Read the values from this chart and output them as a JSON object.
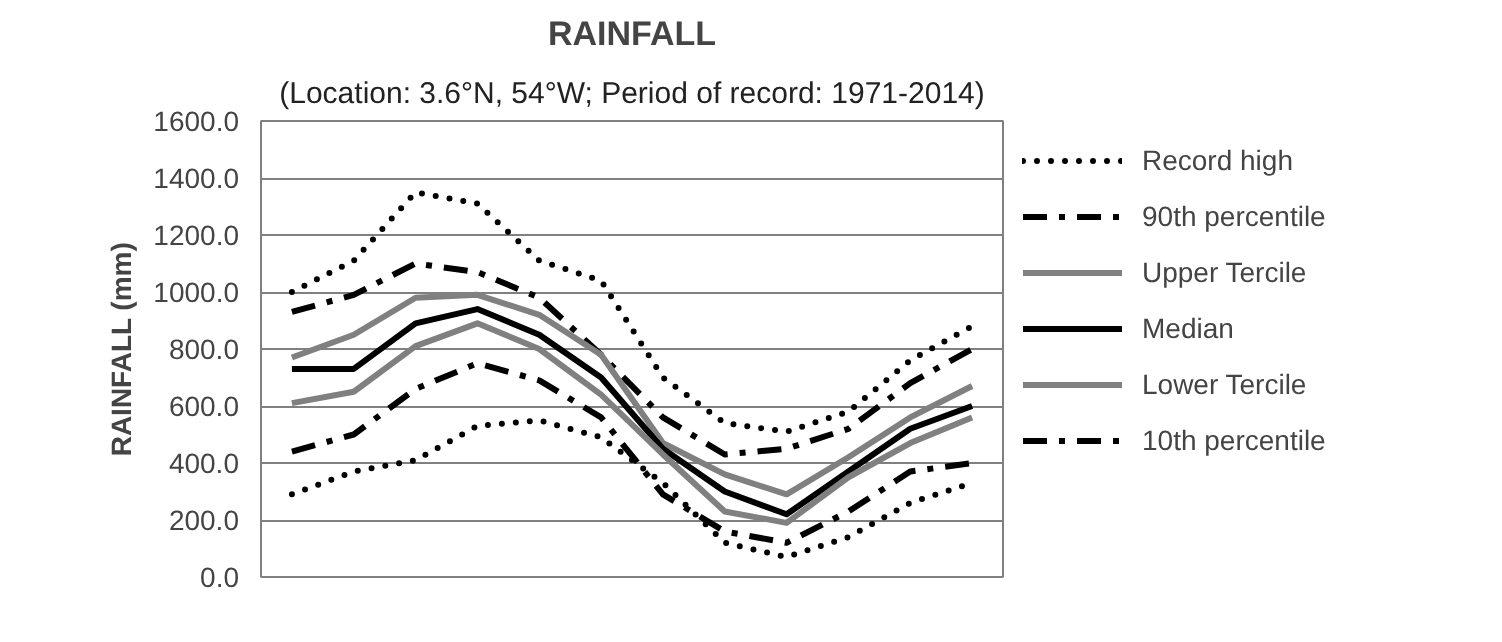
{
  "chart_data": {
    "type": "line",
    "title": "RAINFALL",
    "subtitle": "(Location: 3.6°N, 54°W; Period of record: 1971-2014)",
    "ylabel": "RAINFALL (mm)",
    "categories": [
      null,
      null,
      null,
      null,
      null,
      null,
      null,
      null,
      null,
      null,
      null,
      null
    ],
    "ylim": [
      0,
      1600
    ],
    "yticks": [
      {
        "value": 0,
        "label": "0.0"
      },
      {
        "value": 200,
        "label": "200.0"
      },
      {
        "value": 400,
        "label": "400.0"
      },
      {
        "value": 600,
        "label": "600.0"
      },
      {
        "value": 800,
        "label": "800.0"
      },
      {
        "value": 1000,
        "label": "1000.0"
      },
      {
        "value": 1200,
        "label": "1200.0"
      },
      {
        "value": 1400,
        "label": "1400.0"
      },
      {
        "value": 1600,
        "label": "1600.0"
      }
    ],
    "grid": "y",
    "legend": "right",
    "tick_labels": "y",
    "series": [
      {
        "name": "Record high",
        "color": "#000000",
        "line_style": "dotted",
        "values": [
          1000,
          1110,
          1350,
          1310,
          1110,
          1040,
          700,
          540,
          510,
          580,
          760,
          880
        ]
      },
      {
        "name": "90th percentile",
        "color": "#000000",
        "line_style": "dashdot",
        "values": [
          930,
          990,
          1100,
          1070,
          980,
          780,
          560,
          430,
          450,
          520,
          680,
          800
        ]
      },
      {
        "name": "Upper Tercile",
        "color": "#808080",
        "line_style": "solid",
        "values": [
          770,
          850,
          980,
          990,
          920,
          780,
          470,
          360,
          290,
          420,
          560,
          670
        ]
      },
      {
        "name": "Median",
        "color": "#000000",
        "line_style": "solid",
        "values": [
          730,
          730,
          890,
          940,
          850,
          700,
          450,
          300,
          220,
          370,
          520,
          600
        ]
      },
      {
        "name": "Lower Tercile",
        "color": "#808080",
        "line_style": "solid",
        "values": [
          610,
          650,
          810,
          890,
          800,
          640,
          430,
          230,
          190,
          350,
          470,
          560
        ]
      },
      {
        "name": "10th percentile",
        "color": "#000000",
        "line_style": "dashdot",
        "values": [
          440,
          500,
          660,
          750,
          690,
          560,
          290,
          160,
          120,
          230,
          370,
          400
        ]
      },
      {
        "color": "#000000",
        "line_style": "dotted",
        "values": [
          290,
          370,
          410,
          530,
          550,
          490,
          330,
          120,
          70,
          140,
          260,
          330
        ]
      }
    ]
  }
}
